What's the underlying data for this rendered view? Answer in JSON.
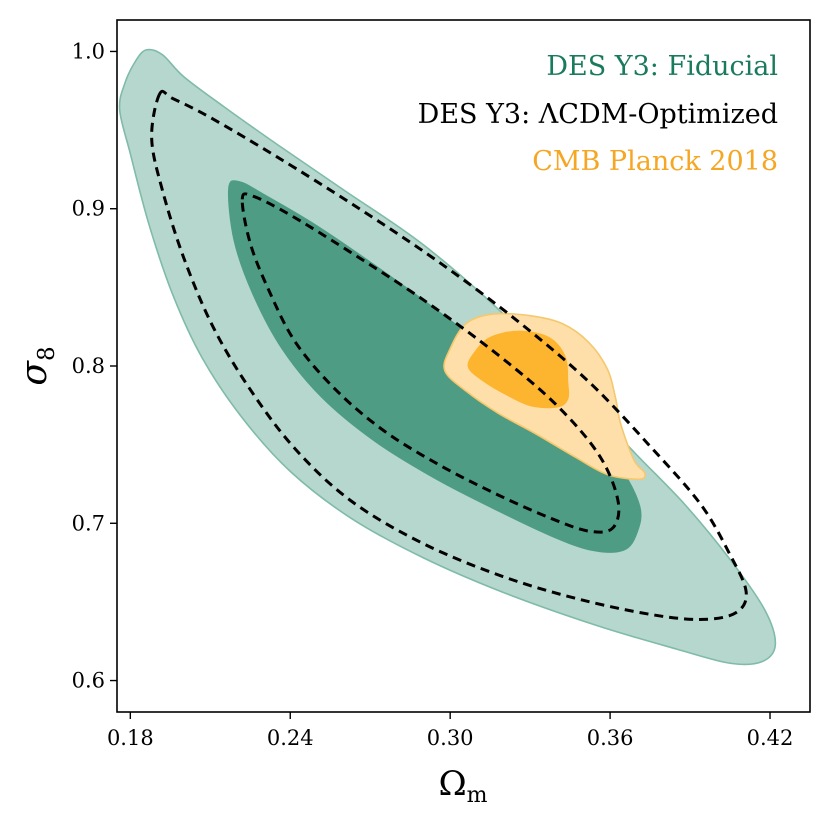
{
  "chart_data": {
    "type": "contour",
    "xlabel": "Ω",
    "xlabel_sub": "m",
    "ylabel": "σ",
    "ylabel_sub": "8",
    "xlim": [
      0.175,
      0.435
    ],
    "ylim": [
      0.58,
      1.02
    ],
    "xticks": [
      0.18,
      0.24,
      0.3,
      0.36,
      0.42
    ],
    "xtick_labels": [
      "0.18",
      "0.24",
      "0.30",
      "0.36",
      "0.42"
    ],
    "yticks": [
      0.6,
      0.7,
      0.8,
      0.9,
      1.0
    ],
    "ytick_labels": [
      "0.6",
      "0.7",
      "0.8",
      "0.9",
      "1.0"
    ],
    "legend_position": "top-right",
    "legend": [
      {
        "label": "DES Y3: Fiducial",
        "color": "#1a7a5e"
      },
      {
        "label": "DES Y3: ΛCDM-Optimized",
        "color": "#000000"
      },
      {
        "label": "CMB Planck 2018",
        "color": "#f5a623"
      }
    ],
    "series": [
      {
        "name": "DES Y3: Fiducial 95%",
        "color": "#b6d7cd",
        "edge": "#7fbba8",
        "points": [
          [
            0.186,
            1.001
          ],
          [
            0.192,
            0.998
          ],
          [
            0.2,
            0.984
          ],
          [
            0.215,
            0.965
          ],
          [
            0.235,
            0.941
          ],
          [
            0.26,
            0.912
          ],
          [
            0.29,
            0.877
          ],
          [
            0.32,
            0.833
          ],
          [
            0.345,
            0.789
          ],
          [
            0.368,
            0.747
          ],
          [
            0.388,
            0.712
          ],
          [
            0.405,
            0.677
          ],
          [
            0.418,
            0.645
          ],
          [
            0.422,
            0.623
          ],
          [
            0.417,
            0.612
          ],
          [
            0.405,
            0.611
          ],
          [
            0.385,
            0.62
          ],
          [
            0.355,
            0.635
          ],
          [
            0.32,
            0.656
          ],
          [
            0.29,
            0.678
          ],
          [
            0.263,
            0.703
          ],
          [
            0.24,
            0.733
          ],
          [
            0.222,
            0.767
          ],
          [
            0.207,
            0.805
          ],
          [
            0.196,
            0.845
          ],
          [
            0.187,
            0.89
          ],
          [
            0.18,
            0.935
          ],
          [
            0.176,
            0.963
          ],
          [
            0.178,
            0.98
          ],
          [
            0.182,
            0.994
          ]
        ]
      },
      {
        "name": "DES Y3: Fiducial 68%",
        "color": "#4e9c83",
        "edge": "#4e9c83",
        "points": [
          [
            0.217,
            0.913
          ],
          [
            0.221,
            0.917
          ],
          [
            0.23,
            0.909
          ],
          [
            0.25,
            0.889
          ],
          [
            0.275,
            0.86
          ],
          [
            0.3,
            0.829
          ],
          [
            0.325,
            0.796
          ],
          [
            0.348,
            0.763
          ],
          [
            0.363,
            0.737
          ],
          [
            0.371,
            0.711
          ],
          [
            0.37,
            0.694
          ],
          [
            0.365,
            0.683
          ],
          [
            0.353,
            0.683
          ],
          [
            0.338,
            0.692
          ],
          [
            0.318,
            0.708
          ],
          [
            0.295,
            0.728
          ],
          [
            0.272,
            0.752
          ],
          [
            0.252,
            0.78
          ],
          [
            0.237,
            0.811
          ],
          [
            0.226,
            0.846
          ],
          [
            0.219,
            0.88
          ]
        ]
      },
      {
        "name": "DES Y3: ΛCDM-Optimized 95%",
        "color": "none",
        "edge": "#000000",
        "dashed": true,
        "points": [
          [
            0.191,
            0.973
          ],
          [
            0.196,
            0.97
          ],
          [
            0.21,
            0.958
          ],
          [
            0.235,
            0.933
          ],
          [
            0.265,
            0.901
          ],
          [
            0.295,
            0.867
          ],
          [
            0.325,
            0.829
          ],
          [
            0.352,
            0.79
          ],
          [
            0.375,
            0.749
          ],
          [
            0.394,
            0.712
          ],
          [
            0.405,
            0.68
          ],
          [
            0.411,
            0.657
          ],
          [
            0.408,
            0.644
          ],
          [
            0.397,
            0.639
          ],
          [
            0.379,
            0.641
          ],
          [
            0.35,
            0.651
          ],
          [
            0.32,
            0.666
          ],
          [
            0.29,
            0.687
          ],
          [
            0.263,
            0.714
          ],
          [
            0.242,
            0.747
          ],
          [
            0.225,
            0.785
          ],
          [
            0.211,
            0.825
          ],
          [
            0.2,
            0.869
          ],
          [
            0.192,
            0.912
          ],
          [
            0.188,
            0.945
          ]
        ]
      },
      {
        "name": "DES Y3: ΛCDM-Optimized 68%",
        "color": "none",
        "edge": "#000000",
        "dashed": true,
        "points": [
          [
            0.222,
            0.906
          ],
          [
            0.226,
            0.908
          ],
          [
            0.24,
            0.896
          ],
          [
            0.262,
            0.873
          ],
          [
            0.29,
            0.842
          ],
          [
            0.318,
            0.807
          ],
          [
            0.34,
            0.775
          ],
          [
            0.356,
            0.743
          ],
          [
            0.363,
            0.714
          ],
          [
            0.361,
            0.697
          ],
          [
            0.352,
            0.695
          ],
          [
            0.338,
            0.703
          ],
          [
            0.318,
            0.718
          ],
          [
            0.296,
            0.737
          ],
          [
            0.275,
            0.759
          ],
          [
            0.257,
            0.785
          ],
          [
            0.242,
            0.815
          ],
          [
            0.232,
            0.848
          ],
          [
            0.225,
            0.878
          ]
        ]
      },
      {
        "name": "CMB Planck 2018 95%",
        "color": "#fedfa9",
        "edge": "#f5c86e",
        "points": [
          [
            0.3,
            0.811
          ],
          [
            0.306,
            0.827
          ],
          [
            0.316,
            0.833
          ],
          [
            0.33,
            0.832
          ],
          [
            0.342,
            0.827
          ],
          [
            0.352,
            0.815
          ],
          [
            0.359,
            0.798
          ],
          [
            0.362,
            0.78
          ],
          [
            0.364,
            0.763
          ],
          [
            0.369,
            0.74
          ],
          [
            0.373,
            0.732
          ],
          [
            0.371,
            0.728
          ],
          [
            0.359,
            0.731
          ],
          [
            0.347,
            0.742
          ],
          [
            0.332,
            0.757
          ],
          [
            0.318,
            0.77
          ],
          [
            0.306,
            0.784
          ],
          [
            0.298,
            0.797
          ]
        ]
      },
      {
        "name": "CMB Planck 2018 68%",
        "color": "#fdb52f",
        "edge": "#fdb52f",
        "points": [
          [
            0.309,
            0.808
          ],
          [
            0.315,
            0.818
          ],
          [
            0.326,
            0.822
          ],
          [
            0.337,
            0.818
          ],
          [
            0.343,
            0.806
          ],
          [
            0.344,
            0.79
          ],
          [
            0.344,
            0.779
          ],
          [
            0.34,
            0.774
          ],
          [
            0.33,
            0.775
          ],
          [
            0.321,
            0.782
          ],
          [
            0.313,
            0.79
          ],
          [
            0.307,
            0.799
          ]
        ]
      }
    ]
  }
}
